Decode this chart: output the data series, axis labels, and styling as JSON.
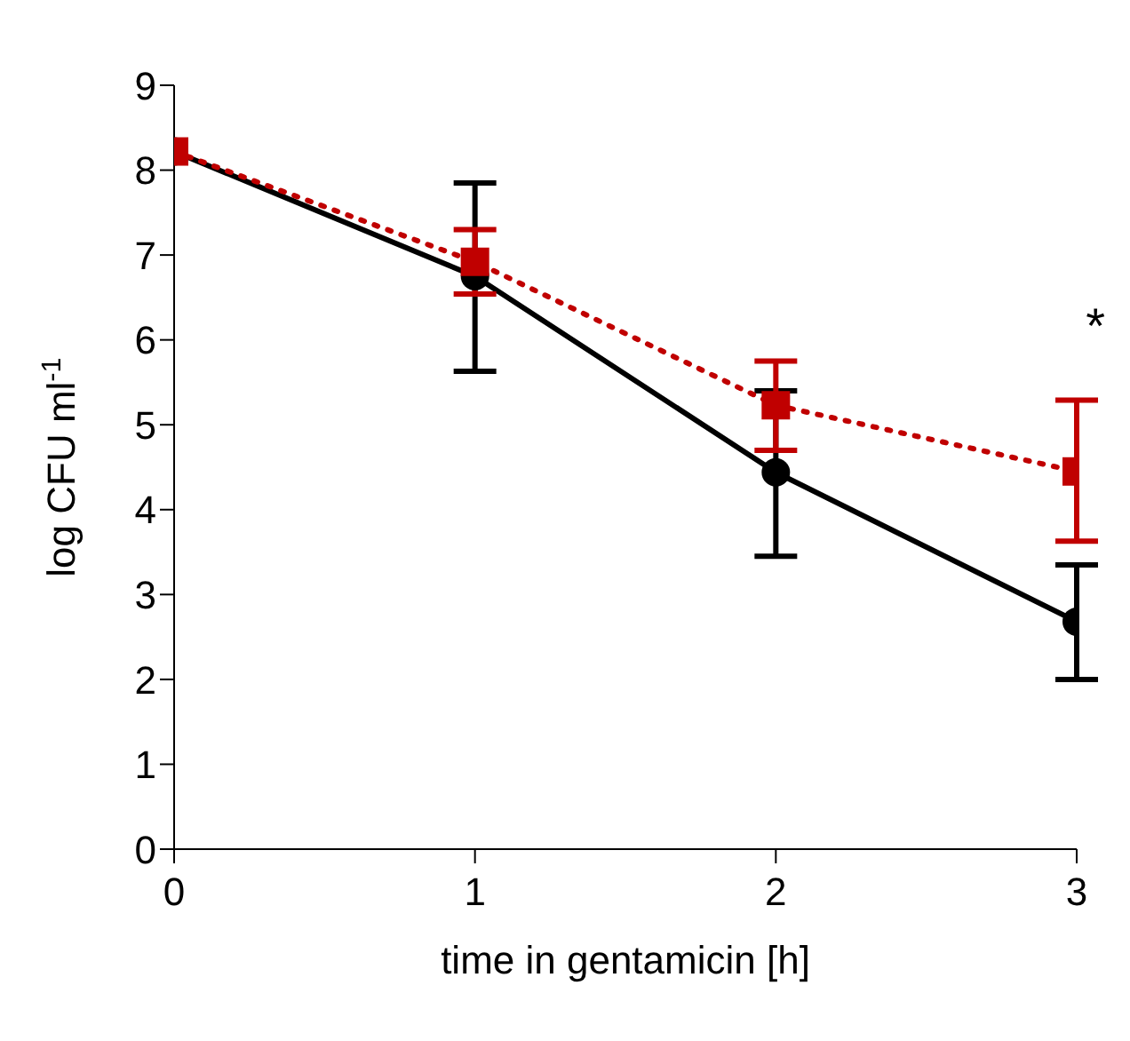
{
  "chart_data": {
    "type": "line",
    "xlabel": "time in gentamicin [h]",
    "ylabel": "log CFU ml$^{-1}$",
    "x": [
      0,
      1,
      2,
      3
    ],
    "series": [
      {
        "color": "#000000",
        "values": [
          8.22,
          6.75,
          4.44,
          2.68
        ],
        "errors": [
          null,
          [
            5.63,
            7.85
          ],
          [
            3.45,
            5.4
          ],
          [
            2.0,
            3.35
          ]
        ],
        "marker": "circle",
        "line_style": "solid"
      },
      {
        "color": "#c00000",
        "values": [
          8.22,
          6.92,
          5.23,
          4.45
        ],
        "errors": [
          null,
          [
            6.54,
            7.3
          ],
          [
            4.7,
            5.75
          ],
          [
            3.63,
            5.29
          ]
        ],
        "marker": "square",
        "line_style": "dotted"
      }
    ],
    "xlim": [
      0,
      3
    ],
    "xticks": [
      0,
      1,
      2,
      3
    ],
    "ylim": [
      0,
      9
    ],
    "yticks": [
      0,
      1,
      2,
      3,
      4,
      5,
      6,
      7,
      8,
      9
    ],
    "annotations": [
      "*"
    ]
  }
}
